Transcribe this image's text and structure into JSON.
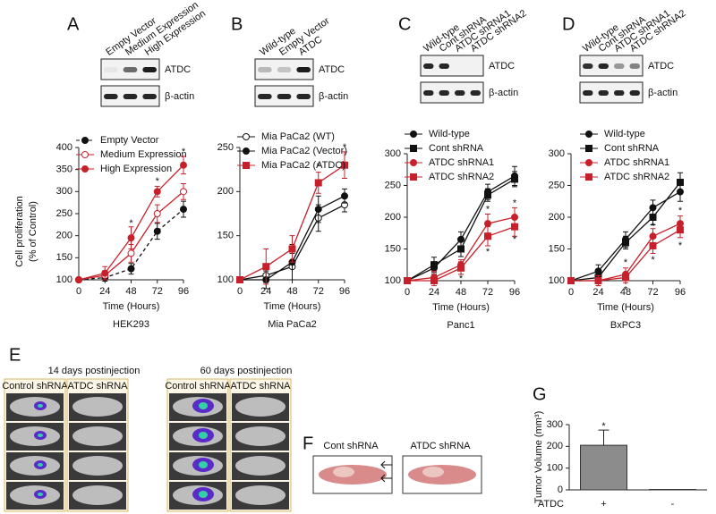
{
  "panels": [
    "A",
    "B",
    "C",
    "D",
    "E",
    "F",
    "G"
  ],
  "blots": [
    {
      "lanes": [
        "Empty Vector",
        "Medium Expression",
        "High Expression"
      ],
      "bands": [
        "ATDC",
        "β-actin"
      ]
    },
    {
      "lanes": [
        "Wild-type",
        "Empty Vector",
        "ATDC"
      ],
      "bands": [
        "ATDC",
        "β-actin"
      ]
    },
    {
      "lanes": [
        "Wild-type",
        "Cont shRNA",
        "ATDC shRNA1",
        "ATDC shRNA2"
      ],
      "bands": [
        "ATDC",
        "β-actin"
      ]
    },
    {
      "lanes": [
        "Wild-type",
        "Cont shRNA",
        "ATDC shRNA1",
        "ATDC shRNA2"
      ],
      "bands": [
        "ATDC",
        "β-actin"
      ]
    }
  ],
  "imaging": {
    "headers": [
      "14 days postinjection",
      "60 days postinjection"
    ],
    "columns": [
      "Control shRNA",
      "ATDC shRNA",
      "Control shRNA",
      "ATDC shRNA"
    ]
  },
  "tissue": {
    "labels": [
      "Cont shRNA",
      "ATDC shRNA"
    ]
  },
  "chart_data": [
    {
      "type": "line",
      "title": "HEK293",
      "xlabel": "Time (Hours)",
      "ylabel": [
        "Cell proliferation",
        "(% of Control)"
      ],
      "x": [
        0,
        24,
        48,
        72,
        96
      ],
      "xlim": [
        0,
        96
      ],
      "xticks": [
        0,
        24,
        48,
        72,
        96
      ],
      "ylim": [
        100,
        400
      ],
      "yticks": [
        100,
        150,
        200,
        250,
        300,
        350,
        400
      ],
      "series": [
        {
          "name": "Empty Vector",
          "color": "#111111",
          "marker": "circle",
          "filled": true,
          "dashed": true,
          "values": [
            100,
            105,
            125,
            210,
            260
          ],
          "errors": [
            2,
            8,
            12,
            18,
            18
          ]
        },
        {
          "name": "Medium Expression",
          "color": "#c8202a",
          "marker": "circle",
          "filled": false,
          "dashed": false,
          "values": [
            100,
            110,
            160,
            250,
            300
          ],
          "errors": [
            2,
            10,
            20,
            20,
            18
          ]
        },
        {
          "name": "High Expression",
          "color": "#c8202a",
          "marker": "circle",
          "filled": true,
          "dashed": false,
          "values": [
            100,
            115,
            195,
            300,
            360
          ],
          "errors": [
            2,
            15,
            25,
            12,
            20
          ]
        }
      ],
      "annotations": [
        {
          "text": "*",
          "x": 48,
          "y": 228,
          "color": "#c8202a"
        },
        {
          "text": "*",
          "x": 72,
          "y": 323,
          "color": "#c8202a"
        },
        {
          "text": "*",
          "x": 96,
          "y": 390,
          "color": "#c8202a"
        }
      ]
    },
    {
      "type": "line",
      "title": "Mia PaCa2",
      "xlabel": "Time (Hours)",
      "x": [
        0,
        24,
        48,
        72,
        96
      ],
      "xlim": [
        0,
        96
      ],
      "xticks": [
        0,
        24,
        48,
        72,
        96
      ],
      "ylim": [
        100,
        250
      ],
      "yticks": [
        100,
        150,
        200,
        250
      ],
      "series": [
        {
          "name": "Mia PaCa2 (WT)",
          "color": "#111111",
          "marker": "circle",
          "filled": false,
          "dashed": false,
          "values": [
            100,
            105,
            115,
            170,
            185
          ],
          "errors": [
            1,
            8,
            15,
            15,
            8
          ]
        },
        {
          "name": "Mia PaCa2 (Vector)",
          "color": "#111111",
          "marker": "circle",
          "filled": true,
          "dashed": false,
          "values": [
            100,
            100,
            120,
            180,
            195
          ],
          "errors": [
            1,
            10,
            20,
            15,
            8
          ]
        },
        {
          "name": "Mia PaCa2 (ATDC)",
          "color": "#c8202a",
          "marker": "square",
          "filled": true,
          "dashed": false,
          "values": [
            100,
            115,
            135,
            210,
            230
          ],
          "errors": [
            1,
            20,
            15,
            12,
            15
          ]
        }
      ],
      "annotations": [
        {
          "text": "*",
          "x": 72,
          "y": 228,
          "color": "#c8202a"
        },
        {
          "text": "*",
          "x": 96,
          "y": 250,
          "color": "#c8202a"
        }
      ]
    },
    {
      "type": "line",
      "title": "Panc1",
      "xlabel": "Time (Hours)",
      "x": [
        0,
        24,
        48,
        72,
        96
      ],
      "xlim": [
        0,
        96
      ],
      "xticks": [
        0,
        24,
        48,
        72,
        96
      ],
      "ylim": [
        100,
        300
      ],
      "yticks": [
        100,
        150,
        200,
        250,
        300
      ],
      "series": [
        {
          "name": "Wild-type",
          "color": "#111111",
          "marker": "circle",
          "filled": true,
          "dashed": false,
          "values": [
            100,
            120,
            165,
            240,
            265
          ],
          "errors": [
            1,
            10,
            12,
            12,
            15
          ]
        },
        {
          "name": "Cont shRNA",
          "color": "#111111",
          "marker": "square",
          "filled": true,
          "dashed": false,
          "values": [
            100,
            125,
            150,
            235,
            260
          ],
          "errors": [
            1,
            12,
            12,
            10,
            12
          ]
        },
        {
          "name": "ATDC shRNA1",
          "color": "#c8202a",
          "marker": "circle",
          "filled": true,
          "dashed": false,
          "values": [
            100,
            105,
            125,
            190,
            200
          ],
          "errors": [
            1,
            10,
            8,
            15,
            15
          ]
        },
        {
          "name": "ATDC shRNA2",
          "color": "#c8202a",
          "marker": "square",
          "filled": true,
          "dashed": false,
          "values": [
            100,
            100,
            120,
            170,
            185
          ],
          "errors": [
            1,
            8,
            10,
            15,
            15
          ]
        }
      ],
      "annotations": [
        {
          "text": "*",
          "x": 48,
          "y": 103,
          "color": "#c8202a"
        },
        {
          "text": "*",
          "x": 72,
          "y": 212,
          "color": "#c8202a"
        },
        {
          "text": "*",
          "x": 72,
          "y": 145,
          "color": "#c8202a"
        },
        {
          "text": "*",
          "x": 96,
          "y": 222,
          "color": "#c8202a"
        },
        {
          "text": "*",
          "x": 96,
          "y": 165,
          "color": "#c8202a"
        }
      ]
    },
    {
      "type": "line",
      "title": "BxPC3",
      "xlabel": "Time (Hours)",
      "x": [
        0,
        24,
        48,
        72,
        96
      ],
      "xlim": [
        0,
        96
      ],
      "xticks": [
        0,
        24,
        48,
        72,
        96
      ],
      "ylim": [
        100,
        300
      ],
      "yticks": [
        100,
        150,
        200,
        250,
        300
      ],
      "series": [
        {
          "name": "Wild-type",
          "color": "#111111",
          "marker": "circle",
          "filled": true,
          "dashed": false,
          "values": [
            100,
            115,
            165,
            215,
            240
          ],
          "errors": [
            1,
            10,
            12,
            12,
            15
          ]
        },
        {
          "name": "Cont shRNA",
          "color": "#111111",
          "marker": "square",
          "filled": true,
          "dashed": false,
          "values": [
            100,
            105,
            160,
            200,
            255
          ],
          "errors": [
            1,
            10,
            10,
            12,
            15
          ]
        },
        {
          "name": "ATDC shRNA1",
          "color": "#c8202a",
          "marker": "circle",
          "filled": true,
          "dashed": false,
          "values": [
            100,
            100,
            110,
            170,
            190
          ],
          "errors": [
            1,
            8,
            10,
            12,
            12
          ]
        },
        {
          "name": "ATDC shRNA2",
          "color": "#c8202a",
          "marker": "square",
          "filled": true,
          "dashed": false,
          "values": [
            100,
            100,
            105,
            155,
            180
          ],
          "errors": [
            1,
            8,
            8,
            12,
            12
          ]
        }
      ],
      "annotations": [
        {
          "text": "*",
          "x": 48,
          "y": 128,
          "color": "#c8202a"
        },
        {
          "text": "*",
          "x": 48,
          "y": 85,
          "color": "#c8202a"
        },
        {
          "text": "*",
          "x": 72,
          "y": 185,
          "color": "#c8202a"
        },
        {
          "text": "*",
          "x": 72,
          "y": 132,
          "color": "#c8202a"
        },
        {
          "text": "*",
          "x": 96,
          "y": 210,
          "color": "#c8202a"
        },
        {
          "text": "*",
          "x": 96,
          "y": 155,
          "color": "#c8202a"
        }
      ]
    },
    {
      "type": "bar",
      "ylabel": "Tumor Volume (mm³)",
      "category_label": "ATDC",
      "categories": [
        "+",
        "-"
      ],
      "values": [
        205,
        2
      ],
      "errors": [
        70,
        0
      ],
      "color": "#8c8c8c",
      "ylim": [
        0,
        300
      ],
      "yticks": [
        0,
        100,
        200,
        300
      ],
      "annotations": [
        {
          "text": "*",
          "x": 0,
          "y": 292,
          "color": "#111111"
        }
      ]
    }
  ]
}
